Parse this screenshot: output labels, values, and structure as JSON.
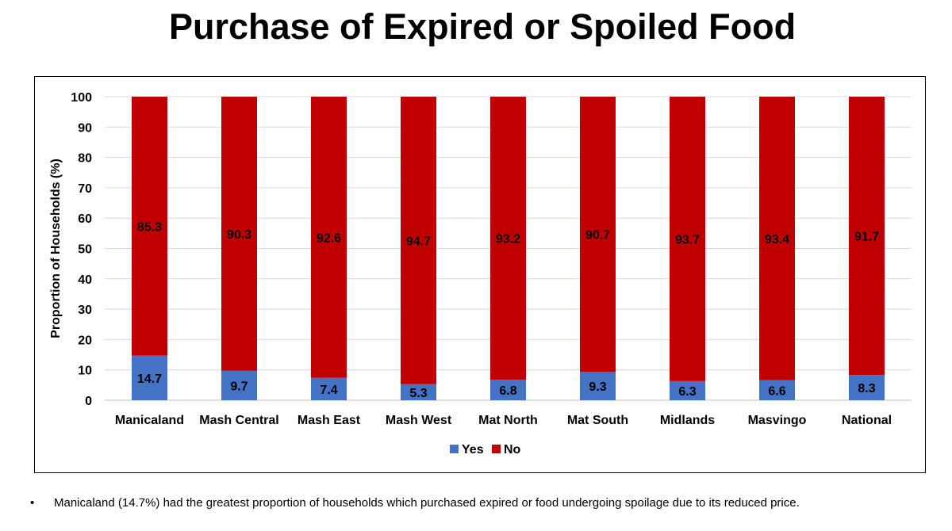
{
  "chart_data": {
    "type": "bar",
    "stacked": true,
    "title": "Purchase of Expired or Spoiled Food",
    "ylabel": "Proportion of Households (%)",
    "xlabel": "",
    "ylim": [
      0,
      100
    ],
    "yticks": [
      0,
      10,
      20,
      30,
      40,
      50,
      60,
      70,
      80,
      90,
      100
    ],
    "categories": [
      "Manicaland",
      "Mash Central",
      "Mash East",
      "Mash West",
      "Mat North",
      "Mat South",
      "Midlands",
      "Masvingo",
      "National"
    ],
    "series": [
      {
        "name": "Yes",
        "color": "#4472C4",
        "values": [
          14.7,
          9.7,
          7.4,
          5.3,
          6.8,
          9.3,
          6.3,
          6.6,
          8.3
        ]
      },
      {
        "name": "No",
        "color": "#C00000",
        "values": [
          85.3,
          90.3,
          92.6,
          94.7,
          93.2,
          90.7,
          93.7,
          93.4,
          91.7
        ]
      }
    ],
    "legend": "bottom",
    "grid": true
  },
  "bullet": {
    "symbol": "•",
    "text": "Manicaland (14.7%) had the greatest proportion of households which purchased expired or food undergoing spoilage due to its reduced price."
  }
}
